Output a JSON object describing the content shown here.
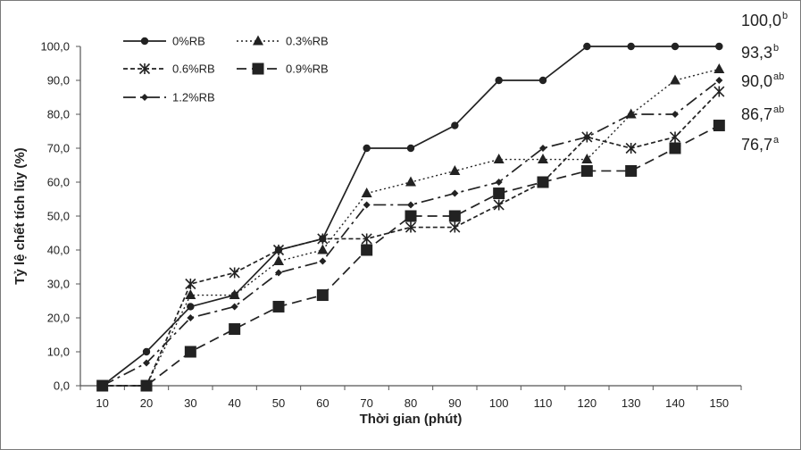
{
  "chart_data": {
    "type": "line",
    "xlabel": "Thời gian (phút)",
    "ylabel": "Tỷ lệ chết tích lũy (%)",
    "x": [
      10,
      20,
      30,
      40,
      50,
      60,
      70,
      80,
      90,
      100,
      110,
      120,
      130,
      140,
      150
    ],
    "xticks": [
      "10",
      "20",
      "30",
      "40",
      "50",
      "60",
      "70",
      "80",
      "90",
      "100",
      "110",
      "120",
      "130",
      "140",
      "150"
    ],
    "ylim": [
      0,
      100
    ],
    "yticks": [
      "0,0",
      "10,0",
      "20,0",
      "30,0",
      "40,0",
      "50,0",
      "60,0",
      "70,0",
      "80,0",
      "90,0",
      "100,0"
    ],
    "grid": false,
    "legend_position": "top-left",
    "series": [
      {
        "name": "0%RB",
        "marker": "circle",
        "dash": "solid",
        "color": "#222222",
        "values": [
          0,
          10,
          23.3,
          26.7,
          40,
          43.3,
          70,
          70,
          76.7,
          90,
          90,
          100,
          100,
          100,
          100
        ]
      },
      {
        "name": "0.3%RB",
        "marker": "triangle",
        "dash": "dotted",
        "color": "#222222",
        "values": [
          0,
          0,
          26.7,
          26.7,
          36.7,
          40,
          56.7,
          60,
          63.3,
          66.7,
          66.7,
          66.7,
          80,
          90,
          93.3
        ]
      },
      {
        "name": "0.6%RB",
        "marker": "asterisk",
        "dash": "short-dash",
        "color": "#222222",
        "values": [
          0,
          0,
          30,
          33.3,
          40,
          43.3,
          43.3,
          46.7,
          46.7,
          53.3,
          60,
          73.3,
          70,
          73.3,
          86.7
        ]
      },
      {
        "name": "0.9%RB",
        "marker": "square",
        "dash": "long-dash",
        "color": "#222222",
        "values": [
          0,
          0,
          10,
          16.7,
          23.3,
          26.7,
          40,
          50,
          50,
          56.7,
          60,
          63.3,
          63.3,
          70,
          76.7
        ]
      },
      {
        "name": "1.2%RB",
        "marker": "diamond",
        "dash": "dash-dot",
        "color": "#222222",
        "values": [
          0,
          6.7,
          20,
          23.3,
          33.3,
          36.7,
          53.3,
          53.3,
          56.7,
          60,
          70,
          73.3,
          80,
          80,
          90
        ]
      }
    ],
    "end_labels": [
      {
        "value": "100,0",
        "sup": "b"
      },
      {
        "value": "93,3",
        "sup": "b"
      },
      {
        "value": "90,0",
        "sup": "ab"
      },
      {
        "value": "86,7",
        "sup": "ab"
      },
      {
        "value": "76,7",
        "sup": "a"
      }
    ]
  }
}
